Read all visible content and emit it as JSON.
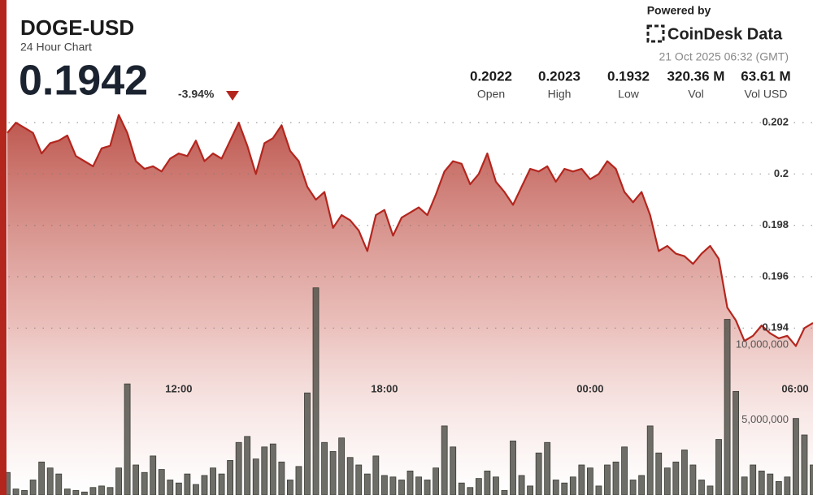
{
  "header": {
    "title": "DOGE-USD",
    "subtitle": "24 Hour Chart",
    "price": "0.1942",
    "change": "-3.94%",
    "powered_by": "Powered by",
    "brand": "CoinDesk Data",
    "timestamp": "21 Oct 2025 06:32 (GMT)",
    "stats": [
      {
        "value": "0.2022",
        "label": "Open"
      },
      {
        "value": "0.2023",
        "label": "High"
      },
      {
        "value": "0.1932",
        "label": "Low"
      },
      {
        "value": "320.36 M",
        "label": "Vol"
      },
      {
        "value": "63.61 M",
        "label": "Vol USD"
      }
    ]
  },
  "chart_data": {
    "type": "line",
    "x": [
      "07:00",
      "07:15",
      "07:30",
      "07:45",
      "08:00",
      "08:15",
      "08:30",
      "08:45",
      "09:00",
      "09:15",
      "09:30",
      "09:45",
      "10:00",
      "10:15",
      "10:30",
      "10:45",
      "11:00",
      "11:15",
      "11:30",
      "11:45",
      "12:00",
      "12:15",
      "12:30",
      "12:45",
      "13:00",
      "13:15",
      "13:30",
      "13:45",
      "14:00",
      "14:15",
      "14:30",
      "14:45",
      "15:00",
      "15:15",
      "15:30",
      "15:45",
      "16:00",
      "16:15",
      "16:30",
      "16:45",
      "17:00",
      "17:15",
      "17:30",
      "17:45",
      "18:00",
      "18:15",
      "18:30",
      "18:45",
      "19:00",
      "19:15",
      "19:30",
      "19:45",
      "20:00",
      "20:15",
      "20:30",
      "20:45",
      "21:00",
      "21:15",
      "21:30",
      "21:45",
      "22:00",
      "22:15",
      "22:30",
      "22:45",
      "23:00",
      "23:15",
      "23:30",
      "23:45",
      "00:00",
      "00:15",
      "00:30",
      "00:45",
      "01:00",
      "01:15",
      "01:30",
      "01:45",
      "02:00",
      "02:15",
      "02:30",
      "02:45",
      "03:00",
      "03:15",
      "03:30",
      "03:45",
      "04:00",
      "04:15",
      "04:30",
      "04:45",
      "05:00",
      "05:15",
      "05:30",
      "05:45",
      "06:00",
      "06:15",
      "06:30"
    ],
    "xticks": [
      "12:00",
      "18:00",
      "00:00",
      "06:00"
    ],
    "series": [
      {
        "color": "#b3261e",
        "values": [
          0.2016,
          0.202,
          0.2018,
          0.2016,
          0.2008,
          0.2012,
          0.2013,
          0.2015,
          0.2007,
          0.2005,
          0.2003,
          0.201,
          0.2011,
          0.2023,
          0.2016,
          0.2005,
          0.2002,
          0.2003,
          0.2001,
          0.2006,
          0.2008,
          0.2007,
          0.2013,
          0.2005,
          0.2008,
          0.2006,
          0.2013,
          0.202,
          0.2011,
          0.2,
          0.2012,
          0.2014,
          0.2019,
          0.2009,
          0.2005,
          0.1995,
          0.199,
          0.1993,
          0.1979,
          0.1984,
          0.1982,
          0.1978,
          0.197,
          0.1984,
          0.1986,
          0.1976,
          0.1983,
          0.1985,
          0.1987,
          0.1984,
          0.1992,
          0.2001,
          0.2005,
          0.2004,
          0.1996,
          0.2,
          0.2008,
          0.1997,
          0.1993,
          0.1988,
          0.1995,
          0.2002,
          0.2001,
          0.2003,
          0.1997,
          0.2002,
          0.2001,
          0.2002,
          0.1998,
          0.2,
          0.2005,
          0.2002,
          0.1993,
          0.1989,
          0.1993,
          0.1984,
          0.197,
          0.1972,
          0.1969,
          0.1968,
          0.1965,
          0.1969,
          0.1972,
          0.1967,
          0.1948,
          0.1943,
          0.1935,
          0.1937,
          0.1941,
          0.1938,
          0.1936,
          0.1937,
          0.1933,
          0.194,
          0.1942
        ]
      },
      {
        "type": "bar",
        "axis": "y2",
        "color": "#55554d",
        "values": [
          1500000,
          400000,
          300000,
          1000000,
          2200000,
          1800000,
          1400000,
          400000,
          300000,
          200000,
          500000,
          600000,
          500000,
          1800000,
          7400000,
          2000000,
          1500000,
          2600000,
          1700000,
          1000000,
          800000,
          1400000,
          700000,
          1300000,
          1800000,
          1400000,
          2300000,
          3500000,
          3900000,
          2400000,
          3200000,
          3400000,
          2200000,
          1000000,
          1900000,
          6800000,
          13800000,
          3500000,
          2900000,
          3800000,
          2500000,
          2000000,
          1400000,
          2600000,
          1300000,
          1200000,
          1000000,
          1600000,
          1200000,
          1000000,
          1800000,
          4600000,
          3200000,
          800000,
          500000,
          1100000,
          1600000,
          1200000,
          300000,
          3600000,
          1300000,
          600000,
          2800000,
          3500000,
          1000000,
          800000,
          1200000,
          2000000,
          1800000,
          600000,
          2000000,
          2200000,
          3200000,
          1000000,
          1300000,
          4600000,
          2800000,
          1800000,
          2200000,
          3000000,
          2000000,
          1000000,
          600000,
          3700000,
          11700000,
          6900000,
          1200000,
          2000000,
          1600000,
          1400000,
          900000,
          1200000,
          5100000,
          4000000,
          2000000
        ]
      }
    ],
    "ylim": [
      0.1875,
      0.2027
    ],
    "yticks": [
      0.194,
      0.196,
      0.198,
      0.2,
      0.202
    ],
    "y2lim": [
      0,
      14000000
    ],
    "y2ticks": [
      {
        "value": 5000000,
        "label": "5,000,000"
      },
      {
        "value": 10000000,
        "label": "10,000,000"
      }
    ],
    "grid": true
  }
}
